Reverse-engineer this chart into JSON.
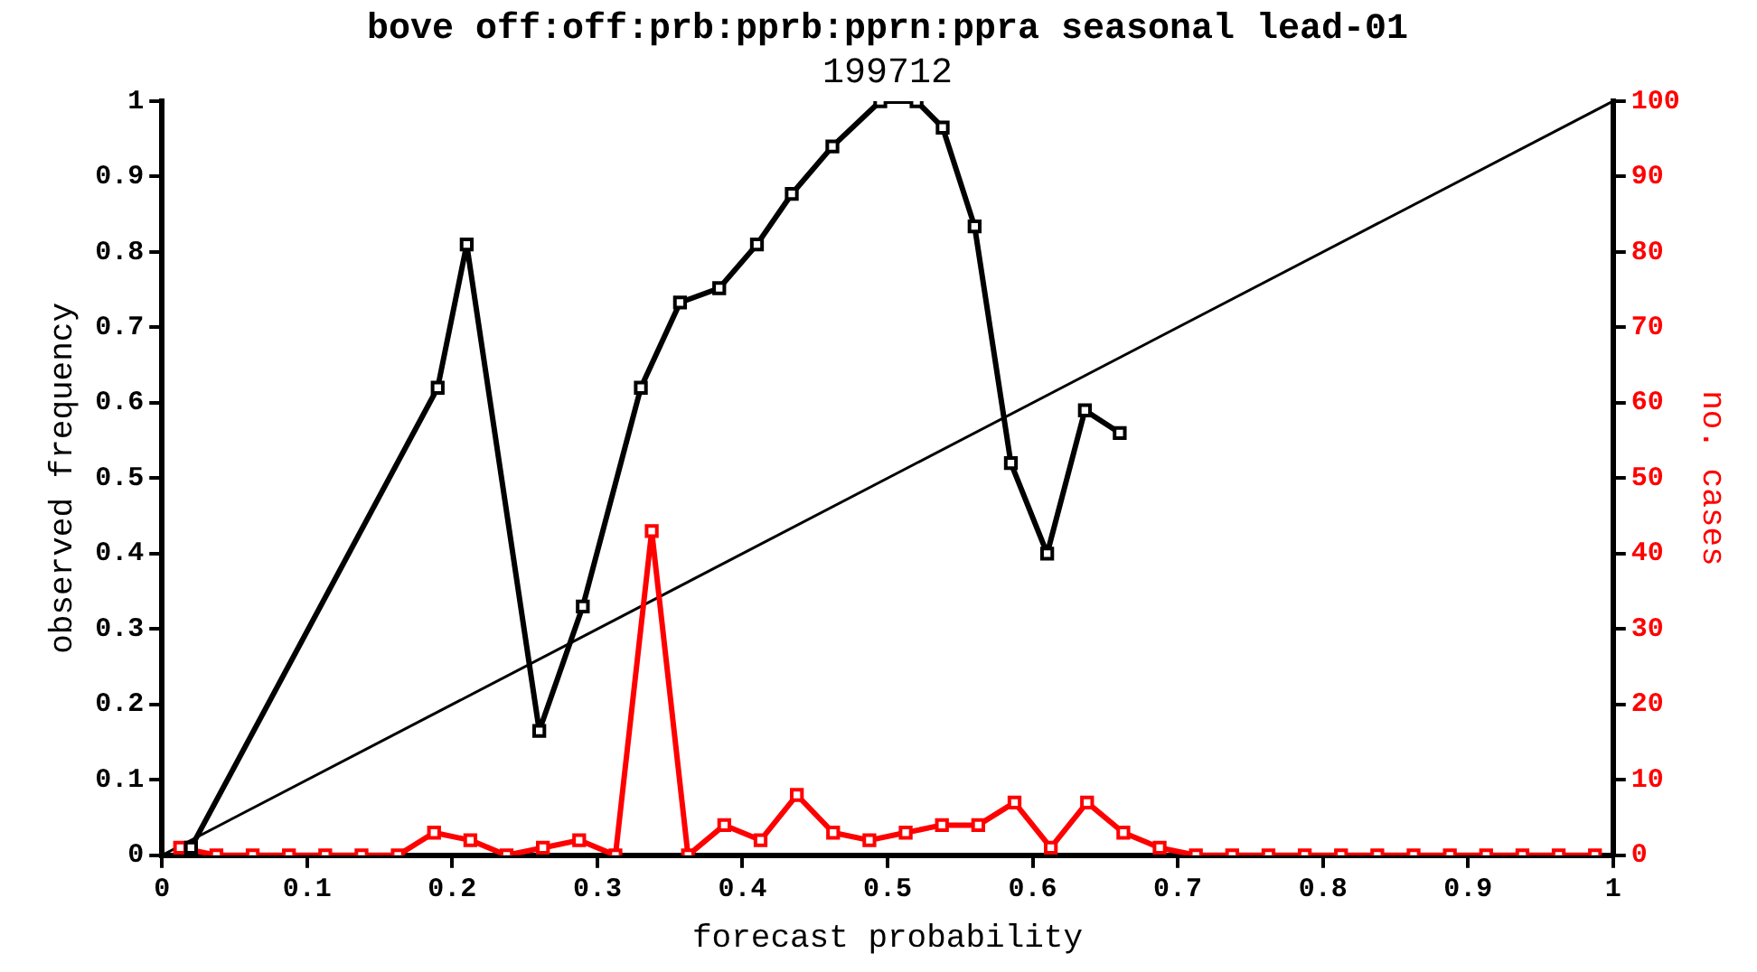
{
  "chart_data": {
    "type": "line",
    "title": "bove off:off:prb:pprb:pprn:ppra seasonal lead-01",
    "subtitle": "199712",
    "xlabel": "forecast probability",
    "ylabel": "observed frequency",
    "y2label": "no. cases",
    "xlim": [
      0,
      1
    ],
    "xticks": [
      0,
      0.1,
      0.2,
      0.3,
      0.4,
      0.5,
      0.6,
      0.7,
      0.8,
      0.9,
      1
    ],
    "ylim": [
      0,
      1
    ],
    "yticks": [
      0,
      0.1,
      0.2,
      0.3,
      0.4,
      0.5,
      0.6,
      0.7,
      0.8,
      0.9,
      1
    ],
    "y2lim": [
      0,
      100
    ],
    "y2ticks": [
      0,
      10,
      20,
      30,
      40,
      50,
      60,
      70,
      80,
      90,
      100
    ],
    "grid": false,
    "legend": false,
    "marker": "square",
    "series": [
      {
        "color": "#000000",
        "x": [
          0.02,
          0.19,
          0.21,
          0.26,
          0.29,
          0.33,
          0.357,
          0.384,
          0.41,
          0.434,
          0.462,
          0.495,
          0.52,
          0.538,
          0.56,
          0.585,
          0.61,
          0.636,
          0.66
        ],
        "values": [
          0.01,
          0.62,
          0.81,
          0.165,
          0.33,
          0.62,
          0.733,
          0.752,
          0.81,
          0.877,
          0.94,
          1.0,
          1.0,
          0.965,
          0.834,
          0.52,
          0.4,
          0.59,
          0.56
        ]
      },
      {
        "color": "#ff0000",
        "axis": "y2",
        "x": [
          0.0125,
          0.0375,
          0.0625,
          0.0875,
          0.1125,
          0.1375,
          0.1625,
          0.1875,
          0.2125,
          0.2375,
          0.2625,
          0.2875,
          0.3125,
          0.3375,
          0.3625,
          0.3875,
          0.4125,
          0.4375,
          0.4625,
          0.4875,
          0.5125,
          0.5375,
          0.5625,
          0.5875,
          0.6125,
          0.6375,
          0.6625,
          0.6875,
          0.7125,
          0.7375,
          0.7625,
          0.7875,
          0.8125,
          0.8375,
          0.8625,
          0.8875,
          0.9125,
          0.9375,
          0.9625,
          0.9875
        ],
        "values": [
          1,
          0,
          0,
          0,
          0,
          0,
          0,
          3,
          2,
          0,
          1,
          2,
          0,
          43,
          0,
          4,
          2,
          8,
          3,
          2,
          3,
          4,
          4,
          7,
          1,
          7,
          3,
          1,
          0,
          0,
          0,
          0,
          0,
          0,
          0,
          0,
          0,
          0,
          0,
          0
        ]
      },
      {
        "color": "#000000",
        "marker": "none",
        "x": [
          0,
          1
        ],
        "values": [
          0,
          1
        ]
      }
    ]
  }
}
